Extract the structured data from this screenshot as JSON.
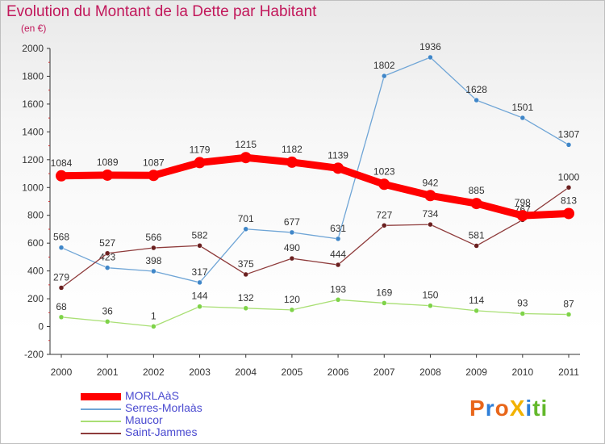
{
  "header": {
    "title": "Evolution du Montant de la Dette par Habitant",
    "subtitle": "(en €)"
  },
  "logo": {
    "text": "Proxiti",
    "letters": [
      {
        "ch": "P",
        "color": "#e8661a"
      },
      {
        "ch": "r",
        "color": "#2f7fd8"
      },
      {
        "ch": "o",
        "color": "#e8661a"
      },
      {
        "ch": "X",
        "color": "#f2b200"
      },
      {
        "ch": "i",
        "color": "#2f7fd8"
      },
      {
        "ch": "t",
        "color": "#63b82b"
      },
      {
        "ch": "i",
        "color": "#63b82b"
      }
    ]
  },
  "chart_data": {
    "type": "line",
    "title": "Evolution du Montant de la Dette par Habitant",
    "subtitle": "(en €)",
    "x": [
      "2000",
      "2001",
      "2002",
      "2003",
      "2004",
      "2005",
      "2006",
      "2007",
      "2008",
      "2009",
      "2010",
      "2011"
    ],
    "ylim": [
      -200,
      2000
    ],
    "yticks": [
      -200,
      0,
      200,
      400,
      600,
      800,
      1000,
      1200,
      1400,
      1600,
      1800,
      2000
    ],
    "grid": false,
    "legend_position": "bottom-left",
    "series": [
      {
        "name": "MORLAàS",
        "color": "#ff0000",
        "emphasis": "thick",
        "values": [
          1084,
          1089,
          1087,
          1179,
          1215,
          1182,
          1139,
          1023,
          942,
          885,
          798,
          813
        ]
      },
      {
        "name": "Serres-Morlaàs",
        "color": "#6fa5d6",
        "marker": "#3f86c8",
        "values": [
          568,
          423,
          398,
          317,
          701,
          677,
          631,
          1802,
          1936,
          1628,
          1501,
          1307
        ]
      },
      {
        "name": "Maucor",
        "color": "#a9df74",
        "marker": "#7ed348",
        "values": [
          68,
          36,
          1,
          144,
          132,
          120,
          193,
          169,
          150,
          114,
          93,
          87
        ]
      },
      {
        "name": "Saint-Jammes",
        "color": "#8e3b3b",
        "marker": "#6a1f1f",
        "values": [
          279,
          527,
          566,
          582,
          375,
          490,
          444,
          727,
          734,
          581,
          767,
          1000
        ]
      }
    ]
  }
}
